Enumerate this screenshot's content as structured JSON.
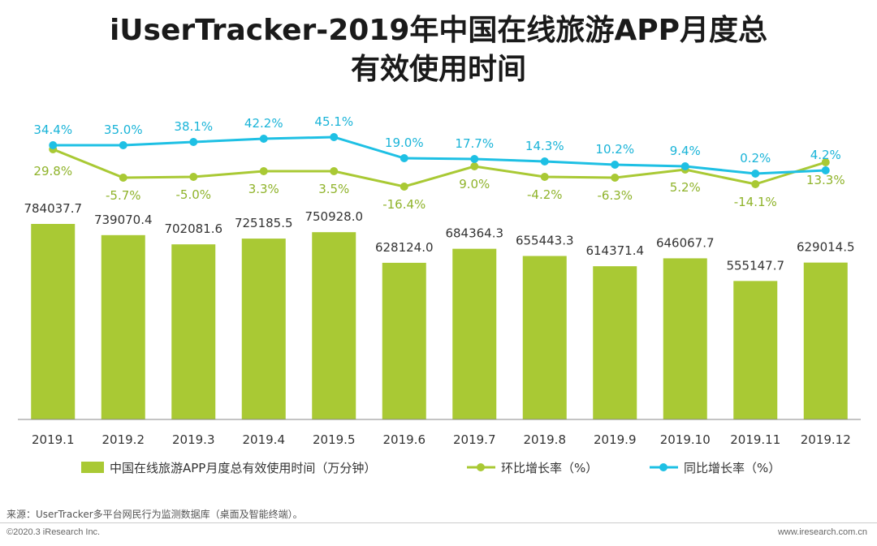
{
  "title_line1": "iUserTracker-2019年中国在线旅游APP月度总",
  "title_line2": "有效使用时间",
  "colors": {
    "bar": "#a9c934",
    "mom_line": "#a9c934",
    "yoy_line": "#1ec0e4",
    "mom_text": "#8fb32a",
    "yoy_text": "#1ab4d8",
    "value_text": "#333333"
  },
  "chart_data": {
    "type": "bar+line",
    "categories": [
      "2019.1",
      "2019.2",
      "2019.3",
      "2019.4",
      "2019.5",
      "2019.6",
      "2019.7",
      "2019.8",
      "2019.9",
      "2019.10",
      "2019.11",
      "2019.12"
    ],
    "series": [
      {
        "name": "中国在线旅游APP月度总有效使用时间（万分钟）",
        "type": "bar",
        "values": [
          784037.7,
          739070.4,
          702081.6,
          725185.5,
          750928.0,
          628124.0,
          684364.3,
          655443.3,
          614371.4,
          646067.7,
          555147.7,
          629014.5
        ],
        "labels": [
          "784037.7",
          "739070.4",
          "702081.6",
          "725185.5",
          "750928.0",
          "628124.0",
          "684364.3",
          "655443.3",
          "614371.4",
          "646067.7",
          "555147.7",
          "629014.5"
        ]
      },
      {
        "name": "环比增长率（%）",
        "type": "line",
        "values": [
          29.8,
          -5.7,
          -5.0,
          3.3,
          3.5,
          -16.4,
          9.0,
          -4.2,
          -6.3,
          5.2,
          -14.1,
          13.3
        ],
        "labels": [
          "29.8%",
          "-5.7%",
          "-5.0%",
          "3.3%",
          "3.5%",
          "-16.4%",
          "9.0%",
          "-4.2%",
          "-6.3%",
          "5.2%",
          "-14.1%",
          "13.3%"
        ]
      },
      {
        "name": "同比增长率（%）",
        "type": "line",
        "values": [
          34.4,
          35.0,
          38.1,
          42.2,
          45.1,
          19.0,
          17.7,
          14.3,
          10.2,
          9.4,
          0.2,
          4.2
        ],
        "labels": [
          "34.4%",
          "35.0%",
          "38.1%",
          "42.2%",
          "45.1%",
          "19.0%",
          "17.7%",
          "14.3%",
          "10.2%",
          "9.4%",
          "0.2%",
          "4.2%"
        ]
      }
    ],
    "bar_ylim": [
      0,
      800000
    ],
    "line_ylim": [
      -100,
      100
    ],
    "grid": false,
    "legend_position": "bottom"
  },
  "source": "来源：UserTracker多平台网民行为监测数据库（桌面及智能终端）。",
  "copyright": "©2020.3 iResearch Inc.",
  "website": "www.iresearch.com.cn"
}
